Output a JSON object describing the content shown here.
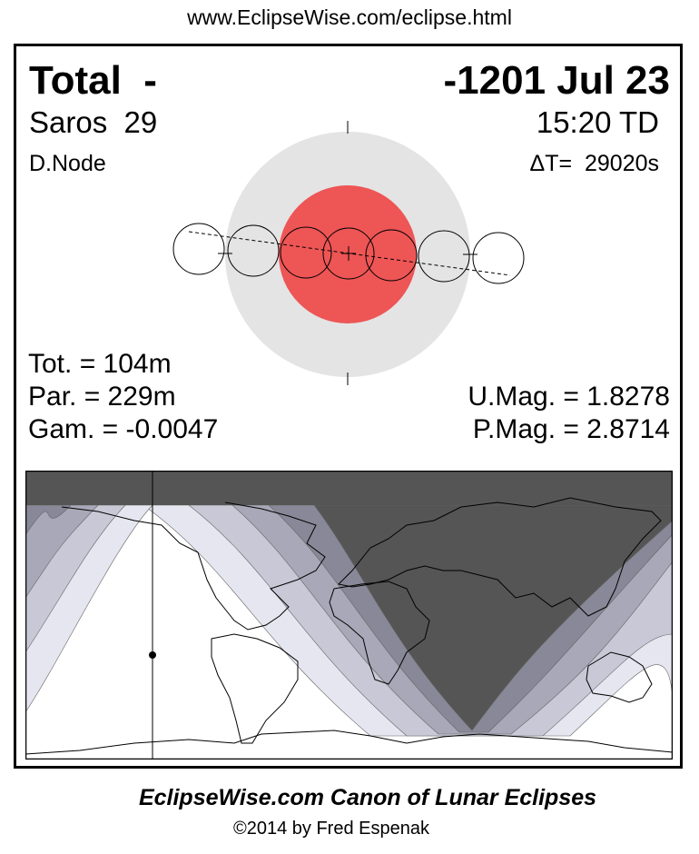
{
  "header": {
    "url": "www.EclipseWise.com/eclipse.html"
  },
  "eclipse": {
    "type": "Total",
    "type_suffix": "-",
    "date": "-1201 Jul 23",
    "saros": "Saros  29",
    "time": "15:20 TD",
    "node": "D.Node",
    "delta_t": "ΔT=  29020s",
    "total_duration": "Tot. = 104m",
    "partial_duration": "Par. = 229m",
    "gamma": "Gam. = -0.0047",
    "umbral_magnitude": "U.Mag. = 1.8278",
    "penumbral_magnitude": "P.Mag. = 2.8714"
  },
  "colors": {
    "umbra": "#ee5555",
    "penumbra": "#e4e4e4",
    "night_full": "#555555",
    "band_1": "#888898",
    "band_2": "#a8a8b8",
    "band_3": "#c8c8d6",
    "band_4": "#e6e6f0"
  },
  "footer": {
    "title": "EclipseWise.com Canon of Lunar Eclipses",
    "copyright": "©2014 by Fred Espenak"
  }
}
